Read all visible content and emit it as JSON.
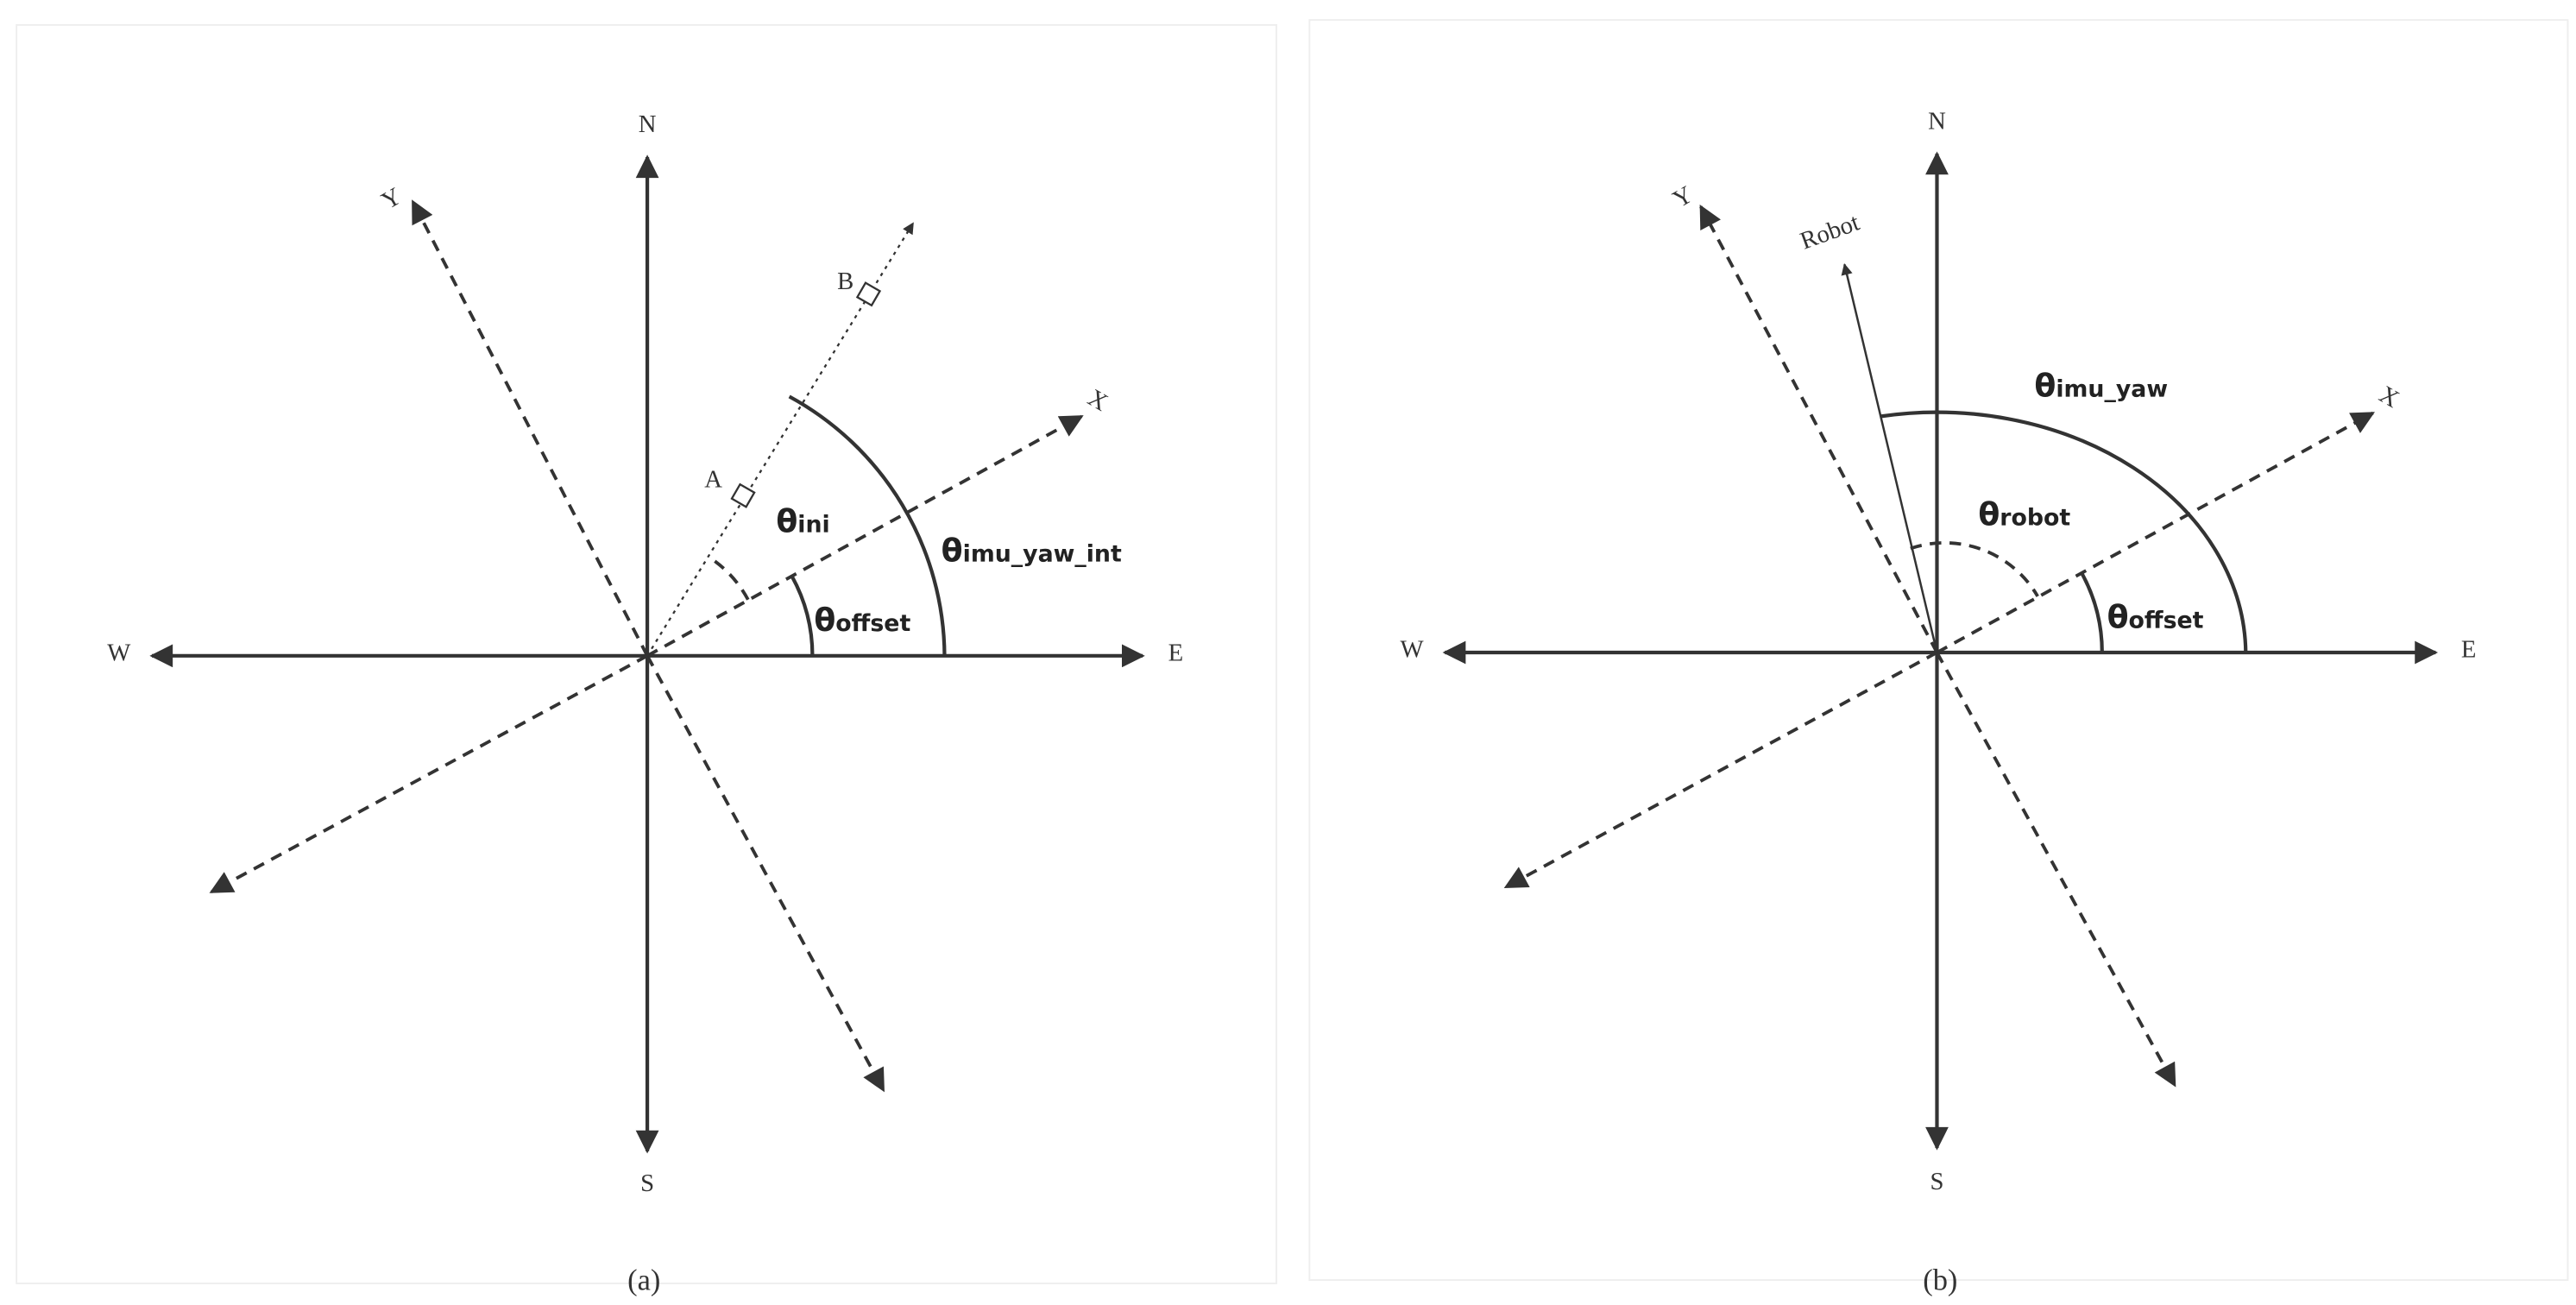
{
  "panels": [
    {
      "caption": "(a)",
      "axes": {
        "n": "N",
        "s": "S",
        "e": "E",
        "w": "W",
        "x": "X",
        "y": "Y"
      },
      "points": [
        "A",
        "B"
      ],
      "angles": [
        {
          "symbol": "θ",
          "subscript": "ini"
        },
        {
          "symbol": "θ",
          "subscript": "imu_yaw_int"
        },
        {
          "symbol": "θ",
          "subscript": "offset"
        }
      ]
    },
    {
      "caption": "(b)",
      "axes": {
        "n": "N",
        "s": "S",
        "e": "E",
        "w": "W",
        "x": "X",
        "y": "Y"
      },
      "robot": "Robot",
      "angles": [
        {
          "symbol": "θ",
          "subscript": "imu_yaw"
        },
        {
          "symbol": "θ",
          "subscript": "robot"
        },
        {
          "symbol": "θ",
          "subscript": "offset"
        }
      ]
    }
  ]
}
